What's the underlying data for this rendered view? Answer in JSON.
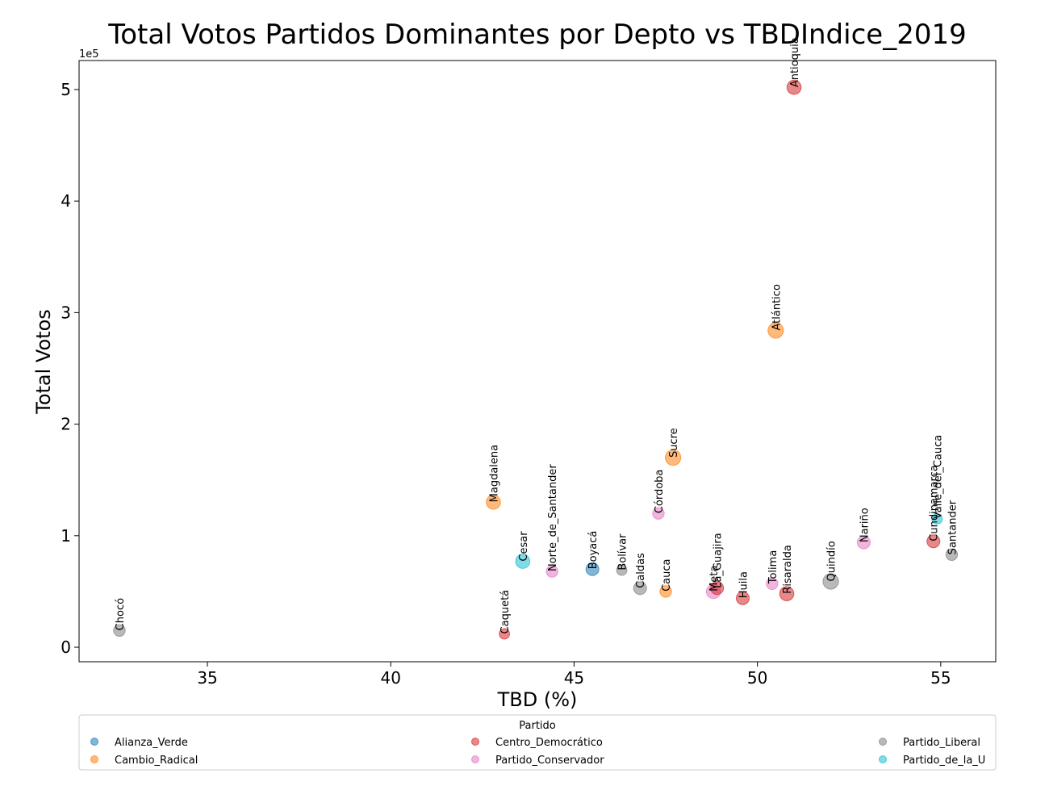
{
  "chart_data": {
    "type": "scatter",
    "title": "Total Votos Partidos Dominantes por Depto vs TBDIndice_2019",
    "xlabel": "TBD (%)",
    "ylabel": "Total Votos",
    "y_offset_label": "1e5",
    "xlim": [
      31.5,
      56.5
    ],
    "ylim": [
      -13000,
      526000
    ],
    "xticks": [
      35,
      40,
      45,
      50,
      55
    ],
    "yticks": [
      0,
      100000,
      200000,
      300000,
      400000,
      500000
    ],
    "ytick_labels": [
      "0",
      "1",
      "2",
      "3",
      "4",
      "5"
    ],
    "grid": false,
    "legend": {
      "title": "Partido",
      "placement": "below plot",
      "entries": [
        {
          "name": "Alianza_Verde",
          "color": "#1f77b4"
        },
        {
          "name": "Cambio_Radical",
          "color": "#ff7f0e"
        },
        {
          "name": "Centro_Democrático",
          "color": "#d62728"
        },
        {
          "name": "Partido_Conservador",
          "color": "#e377c2"
        },
        {
          "name": "Partido_Liberal",
          "color": "#7f7f7f"
        },
        {
          "name": "Partido_de_la_U",
          "color": "#17becf"
        }
      ]
    },
    "points": [
      {
        "label": "Chocó",
        "party": "Partido_Liberal",
        "x": 32.6,
        "y": 15000,
        "size": 9
      },
      {
        "label": "Magdalena",
        "party": "Cambio_Radical",
        "x": 42.8,
        "y": 130000,
        "size": 11
      },
      {
        "label": "Caquetá",
        "party": "Centro_Democrático",
        "x": 43.1,
        "y": 12000,
        "size": 8
      },
      {
        "label": "Cesar",
        "party": "Partido_de_la_U",
        "x": 43.6,
        "y": 77000,
        "size": 11
      },
      {
        "label": "Norte_de_Santander",
        "party": "Partido_Conservador",
        "x": 44.4,
        "y": 68000,
        "size": 9
      },
      {
        "label": "Boyacá",
        "party": "Alianza_Verde",
        "x": 45.5,
        "y": 70000,
        "size": 10
      },
      {
        "label": "Bolívar",
        "party": "Partido_Liberal",
        "x": 46.3,
        "y": 69000,
        "size": 8
      },
      {
        "label": "Caldas",
        "party": "Partido_Liberal",
        "x": 46.8,
        "y": 53000,
        "size": 10
      },
      {
        "label": "Córdoba",
        "party": "Partido_Conservador",
        "x": 47.3,
        "y": 120000,
        "size": 9
      },
      {
        "label": "Cauca",
        "party": "Cambio_Radical",
        "x": 47.5,
        "y": 50000,
        "size": 9
      },
      {
        "label": "Sucre",
        "party": "Cambio_Radical",
        "x": 47.7,
        "y": 170000,
        "size": 12
      },
      {
        "label": "Meta",
        "party": "Partido_Conservador",
        "x": 48.8,
        "y": 50000,
        "size": 11
      },
      {
        "label": "La_Guajira",
        "party": "Centro_Democrático",
        "x": 48.9,
        "y": 53000,
        "size": 10
      },
      {
        "label": "Huila",
        "party": "Centro_Democrático",
        "x": 49.6,
        "y": 44000,
        "size": 10
      },
      {
        "label": "Tolima",
        "party": "Partido_Conservador",
        "x": 50.4,
        "y": 57000,
        "size": 9
      },
      {
        "label": "Atlántico",
        "party": "Cambio_Radical",
        "x": 50.5,
        "y": 284000,
        "size": 12
      },
      {
        "label": "Risaralda",
        "party": "Centro_Democrático",
        "x": 50.8,
        "y": 48000,
        "size": 11
      },
      {
        "label": "Antioquia",
        "party": "Centro_Democrático",
        "x": 51.0,
        "y": 502000,
        "size": 11
      },
      {
        "label": "Quindío",
        "party": "Partido_Liberal",
        "x": 52.0,
        "y": 59000,
        "size": 12
      },
      {
        "label": "Nariño",
        "party": "Partido_Conservador",
        "x": 52.9,
        "y": 94000,
        "size": 10
      },
      {
        "label": "Cundinamarca",
        "party": "Centro_Democrático",
        "x": 54.8,
        "y": 95000,
        "size": 10
      },
      {
        "label": "Valle_del_Cauca",
        "party": "Partido_de_la_U",
        "x": 54.9,
        "y": 115000,
        "size": 8
      },
      {
        "label": "Santander",
        "party": "Partido_Liberal",
        "x": 55.3,
        "y": 83000,
        "size": 9
      }
    ]
  }
}
